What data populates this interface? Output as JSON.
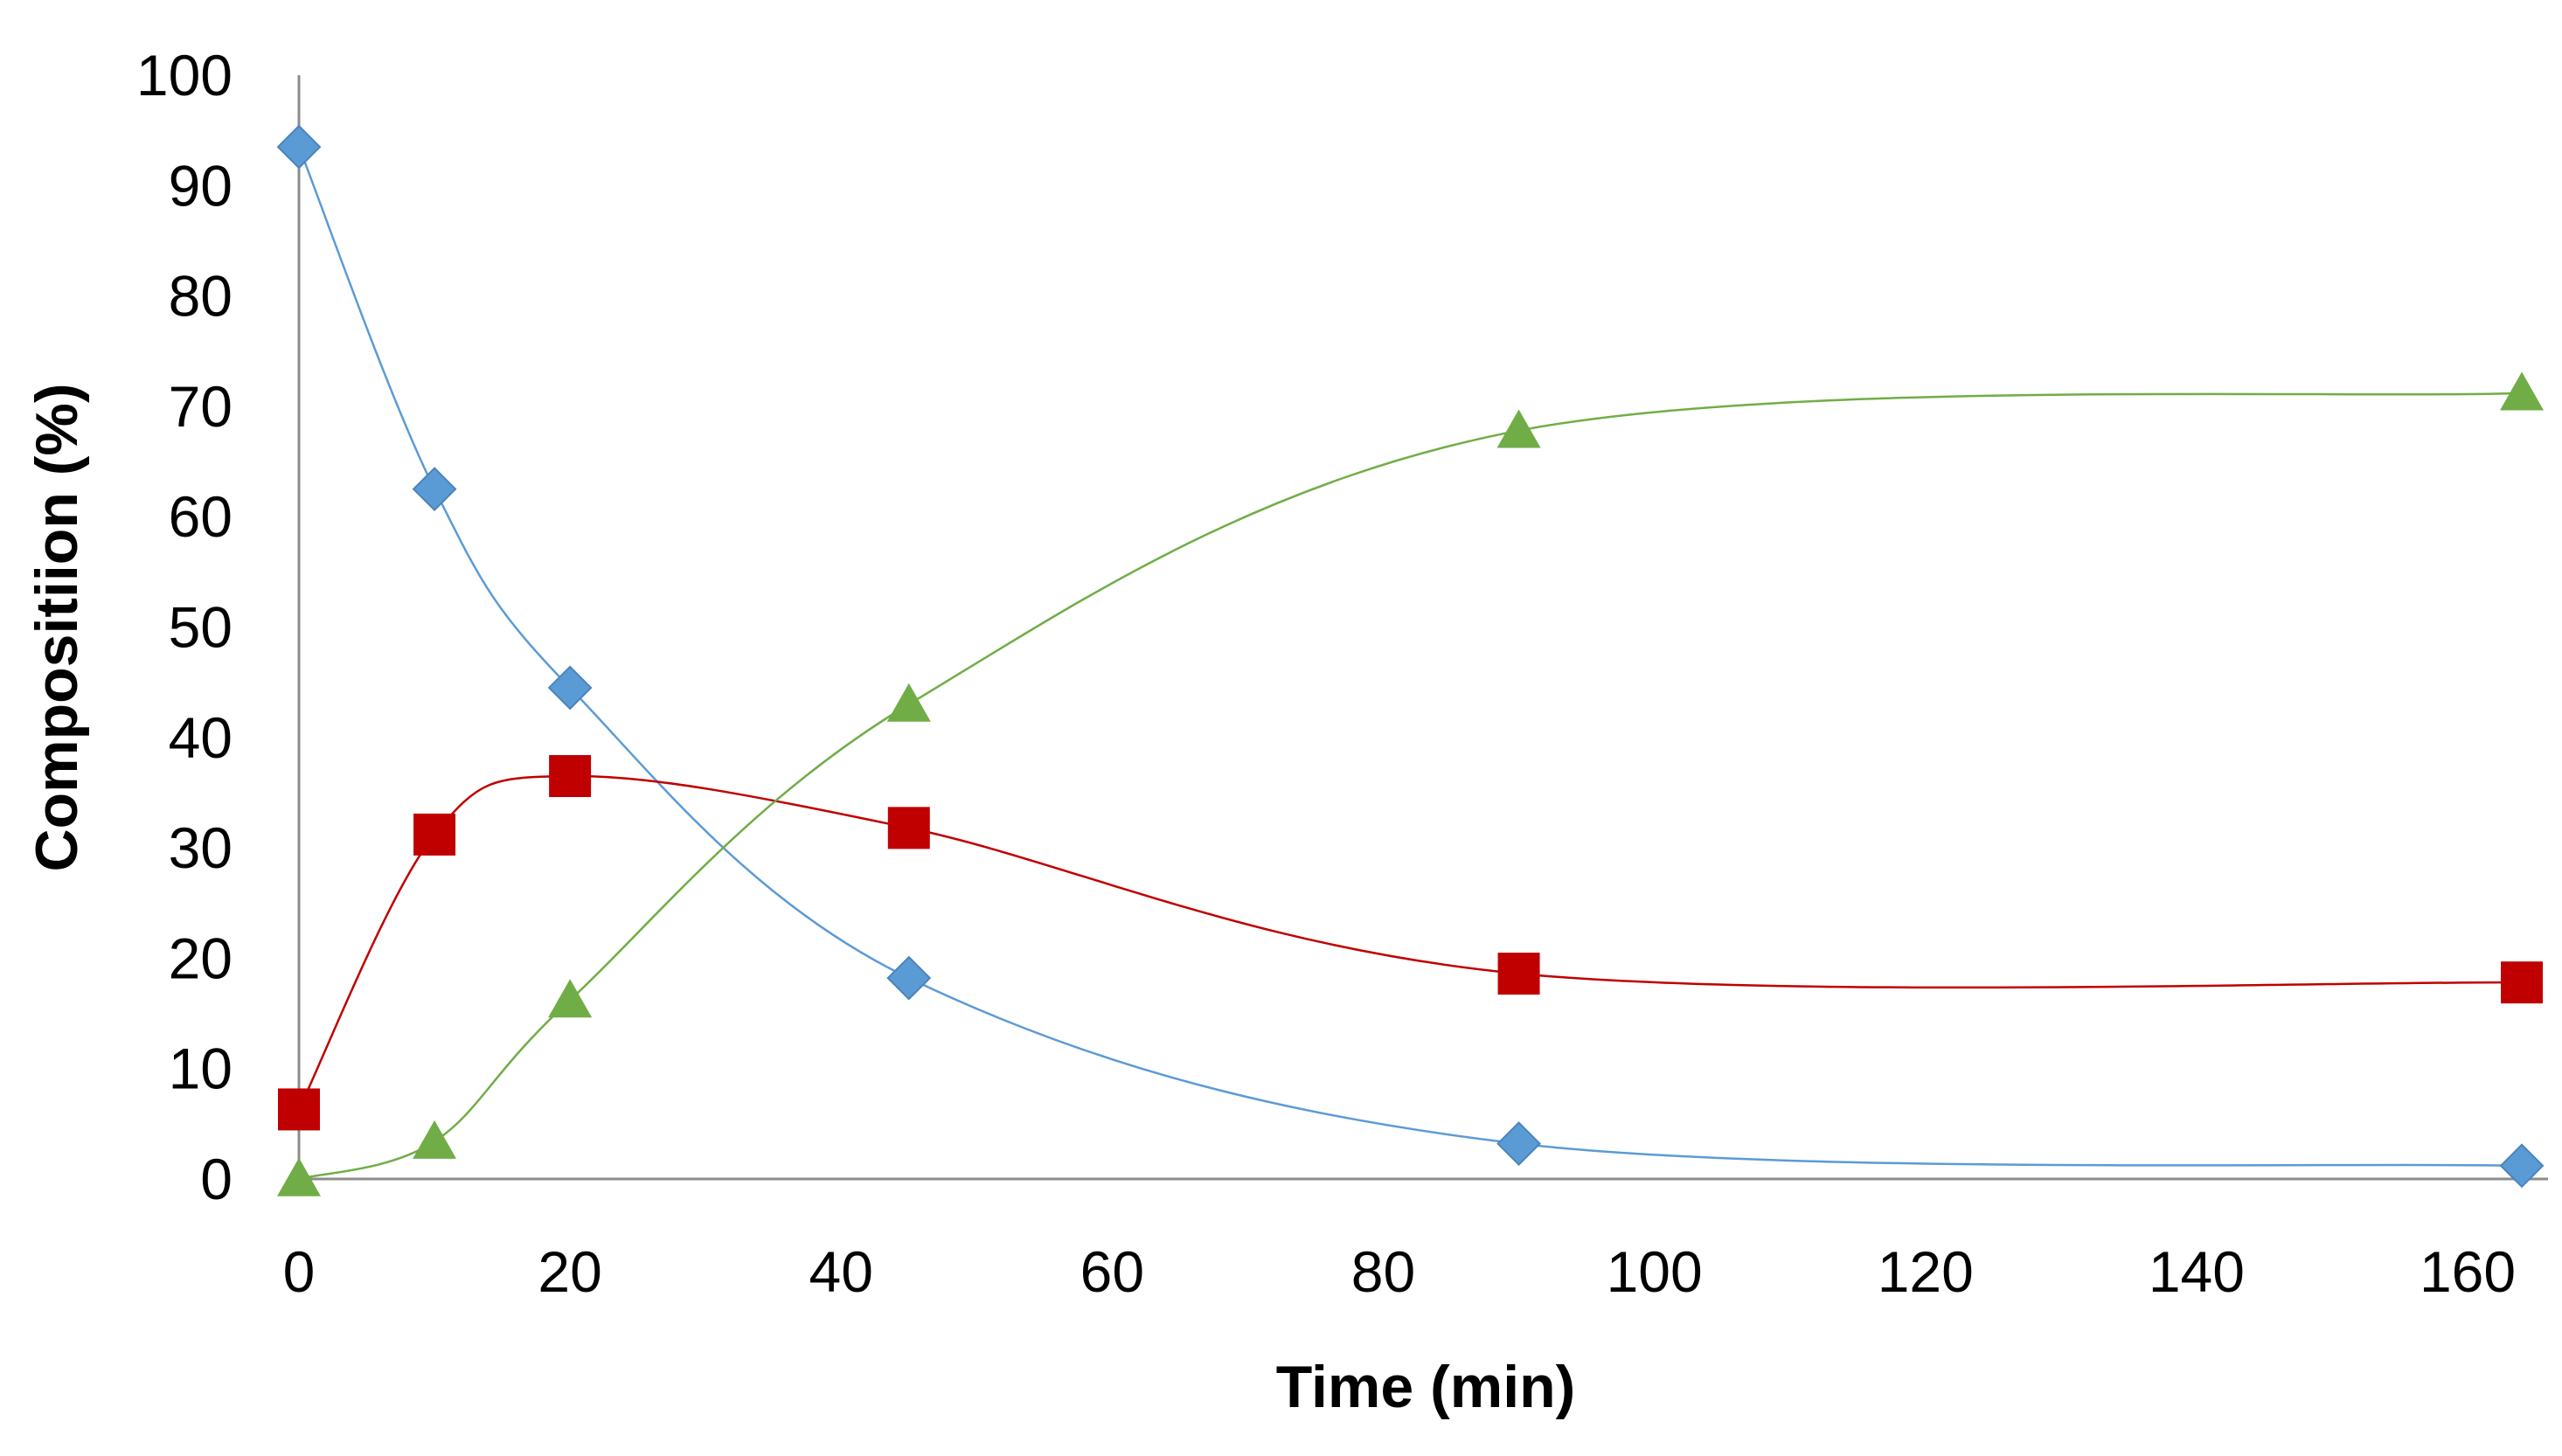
{
  "chart_data": {
    "type": "scatter",
    "smooth_lines": true,
    "title": "",
    "xlabel": "Time (min)",
    "ylabel": "Compositiion (%)",
    "xlim": [
      0,
      170
    ],
    "ylim": [
      0,
      100
    ],
    "xticks": [
      0,
      20,
      40,
      60,
      80,
      100,
      120,
      140,
      160
    ],
    "yticks": [
      0,
      10,
      20,
      30,
      40,
      50,
      60,
      70,
      80,
      90,
      100
    ],
    "grid": false,
    "legend": "none",
    "series": [
      {
        "name": "series-1",
        "color": "#5B9BD5",
        "marker": "diamond",
        "x": [
          0,
          10,
          20,
          45,
          90,
          164
        ],
        "y": [
          93.5,
          62.5,
          44.5,
          18.2,
          3.2,
          1.2
        ]
      },
      {
        "name": "series-2",
        "color": "#C00000",
        "marker": "square",
        "x": [
          0,
          10,
          20,
          45,
          90,
          164
        ],
        "y": [
          6.3,
          31.2,
          36.5,
          31.8,
          18.6,
          17.8
        ]
      },
      {
        "name": "series-3",
        "color": "#70AD47",
        "marker": "triangle",
        "x": [
          0,
          10,
          20,
          45,
          90,
          164
        ],
        "y": [
          0,
          3.4,
          16.2,
          43.0,
          67.8,
          71.2
        ]
      }
    ]
  }
}
